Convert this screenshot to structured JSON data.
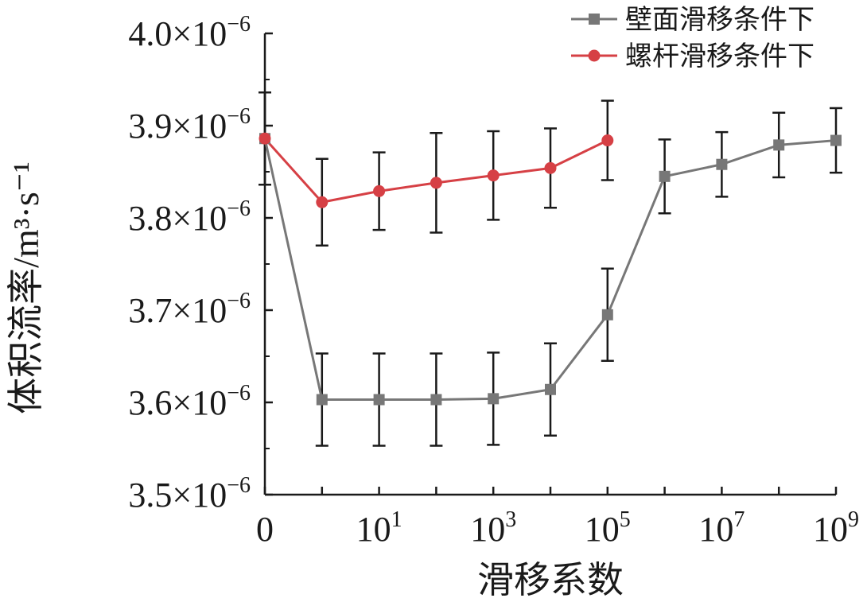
{
  "chart_data": {
    "type": "line",
    "xlabel": "滑移系数",
    "ylabel": "体积流率/m³·s⁻¹",
    "x_positions": [
      0,
      1,
      2,
      3,
      4,
      5,
      6,
      7,
      8,
      9,
      10
    ],
    "x_tick_labels": [
      {
        "pos": 0,
        "base": "0",
        "exp": ""
      },
      {
        "pos": 2,
        "base": "10",
        "exp": "1"
      },
      {
        "pos": 4,
        "base": "10",
        "exp": "3"
      },
      {
        "pos": 6,
        "base": "10",
        "exp": "5"
      },
      {
        "pos": 8,
        "base": "10",
        "exp": "7"
      },
      {
        "pos": 10,
        "base": "10",
        "exp": "9"
      }
    ],
    "y_ticks": [
      3.5,
      3.6,
      3.7,
      3.8,
      3.9,
      4.0
    ],
    "y_tick_labels": [
      "3.5",
      "3.6",
      "3.7",
      "3.8",
      "3.9",
      "4.0"
    ],
    "y_tick_suffix": "×10",
    "y_tick_exp": "−6",
    "ylim": [
      3.5,
      4.0
    ],
    "xlim": [
      0,
      10
    ],
    "legend_position": "top-right",
    "series": [
      {
        "name": "壁面滑移条件下",
        "color": "#777777",
        "marker": "square",
        "x": [
          0,
          1,
          2,
          3,
          4,
          5,
          6,
          7,
          8,
          9,
          10
        ],
        "values": [
          3.886,
          3.603,
          3.603,
          3.603,
          3.604,
          3.614,
          3.695,
          3.845,
          3.858,
          3.879,
          3.884
        ],
        "error": [
          0.05,
          0.05,
          0.05,
          0.05,
          0.05,
          0.05,
          0.05,
          0.04,
          0.035,
          0.035,
          0.035
        ]
      },
      {
        "name": "螺杆滑移条件下",
        "color": "#d64045",
        "marker": "circle",
        "x": [
          0,
          1,
          2,
          3,
          4,
          5,
          6
        ],
        "values": [
          3.886,
          3.817,
          3.829,
          3.838,
          3.846,
          3.854,
          3.884
        ],
        "error": [
          0.05,
          0.047,
          0.042,
          0.054,
          0.048,
          0.043,
          0.043
        ]
      }
    ]
  }
}
